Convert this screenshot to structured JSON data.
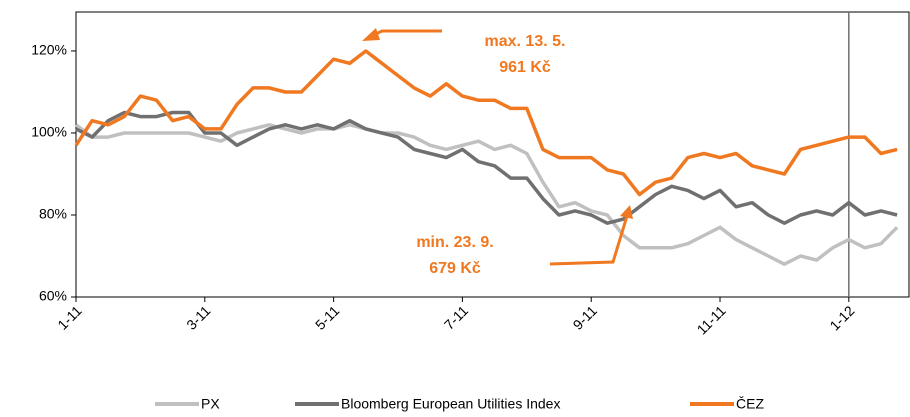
{
  "chart_data": {
    "type": "line",
    "x": [
      0,
      0.25,
      0.5,
      0.75,
      1,
      1.25,
      1.5,
      1.75,
      2,
      2.25,
      2.5,
      2.75,
      3,
      3.25,
      3.5,
      3.75,
      4,
      4.25,
      4.5,
      4.75,
      5,
      5.25,
      5.5,
      5.75,
      6,
      6.25,
      6.5,
      6.75,
      7,
      7.25,
      7.5,
      7.75,
      8,
      8.25,
      8.5,
      8.75,
      9,
      9.25,
      9.5,
      9.75,
      10,
      10.25,
      10.5,
      10.75,
      11,
      11.25,
      11.5,
      11.75,
      12,
      12.25,
      12.5,
      12.75
    ],
    "series": [
      {
        "name": "PX",
        "color": "#c0c0c0",
        "values": [
          102,
          99,
          99,
          100,
          100,
          100,
          100,
          100,
          99,
          98,
          100,
          101,
          102,
          101,
          100,
          101,
          101,
          102,
          101,
          100,
          100,
          99,
          97,
          96,
          97,
          98,
          96,
          97,
          95,
          88,
          82,
          83,
          81,
          80,
          75,
          72,
          72,
          72,
          73,
          75,
          77,
          74,
          72,
          70,
          68,
          70,
          69,
          72,
          74,
          72,
          73,
          77
        ]
      },
      {
        "name": "Bloomberg European Utilities Index",
        "color": "#707070",
        "values": [
          101,
          99,
          103,
          105,
          104,
          104,
          105,
          105,
          100,
          100,
          97,
          99,
          101,
          102,
          101,
          102,
          101,
          103,
          101,
          100,
          99,
          96,
          95,
          94,
          96,
          93,
          92,
          89,
          89,
          84,
          80,
          81,
          80,
          78,
          79,
          82,
          85,
          87,
          86,
          84,
          86,
          82,
          83,
          80,
          78,
          80,
          81,
          80,
          83,
          80,
          81,
          80
        ]
      },
      {
        "name": "ČEZ",
        "color": "#f07820",
        "values": [
          97,
          103,
          102,
          104,
          109,
          108,
          103,
          104,
          101,
          101,
          107,
          111,
          111,
          110,
          110,
          114,
          118,
          117,
          120,
          117,
          114,
          111,
          109,
          112,
          109,
          108,
          108,
          106,
          106,
          96,
          94,
          94,
          94,
          91,
          90,
          85,
          88,
          89,
          94,
          95,
          94,
          95,
          92,
          91,
          90,
          96,
          97,
          98,
          99,
          99,
          95,
          96
        ]
      }
    ],
    "xlim": [
      0,
      12.95
    ],
    "xticks": [
      {
        "value": 0,
        "label": "1-11"
      },
      {
        "value": 2,
        "label": "3-11"
      },
      {
        "value": 4,
        "label": "5-11"
      },
      {
        "value": 6,
        "label": "7-11"
      },
      {
        "value": 8,
        "label": "9-11"
      },
      {
        "value": 10,
        "label": "11-11"
      },
      {
        "value": 12,
        "label": "1-12"
      }
    ],
    "ylim": [
      60,
      129.5
    ],
    "yticks": [
      {
        "value": 60,
        "label": "60%"
      },
      {
        "value": 80,
        "label": "80%"
      },
      {
        "value": 100,
        "label": "100%"
      },
      {
        "value": 120,
        "label": "120%"
      }
    ],
    "vline": 12,
    "annotations": [
      [
        "max. 13. 5.",
        "961 Kč"
      ],
      [
        "min. 23. 9.",
        "679 Kč"
      ]
    ]
  }
}
